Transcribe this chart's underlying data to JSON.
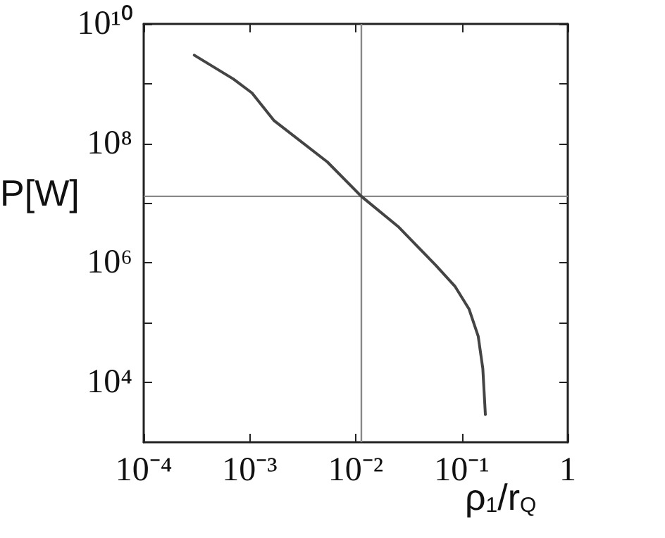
{
  "chart_data": {
    "type": "line",
    "xlabel": "ρ$_{1}$/r$_{Q}$",
    "ylabel": "P[W]",
    "log": "xy",
    "grid": false,
    "marker": "none",
    "line_style": "solid",
    "xlim": [
      0.0001,
      1
    ],
    "ylim": [
      1000,
      10000000000
    ],
    "xticks": [
      {
        "value": 0.0001,
        "label": "10⁻⁴"
      },
      {
        "value": 0.001,
        "label": "10⁻³"
      },
      {
        "value": 0.01,
        "label": "10⁻²"
      },
      {
        "value": 0.1,
        "label": "10⁻¹"
      },
      1
    ],
    "yticks": [
      {
        "value": 10000,
        "label": "10⁴"
      },
      {
        "value": 100000,
        "label": null
      },
      {
        "value": 1000000,
        "label": "10⁶"
      },
      {
        "value": 10000000,
        "label": null
      },
      {
        "value": 100000000,
        "label": "10⁸"
      },
      {
        "value": 1000000000,
        "label": null
      },
      {
        "value": 10000000000,
        "label": "10¹⁰"
      }
    ],
    "x": [
      0.0003,
      0.0007,
      0.00105,
      0.0017,
      0.0054,
      0.0113,
      0.025,
      0.057,
      0.086,
      0.117,
      0.143,
      0.158,
      0.167
    ],
    "series": [
      {
        "color": "#444444",
        "values": [
          3000000000,
          1200000000,
          700000000,
          240000000,
          49000000,
          13000000,
          4100000,
          910000,
          410000,
          170000,
          59000,
          17000,
          2900
        ]
      }
    ],
    "ref_lines": [
      {
        "axis": "x",
        "value": 0.0113,
        "color": "#888888"
      },
      {
        "axis": "y",
        "value": 13000000,
        "color": "#888888"
      }
    ]
  }
}
